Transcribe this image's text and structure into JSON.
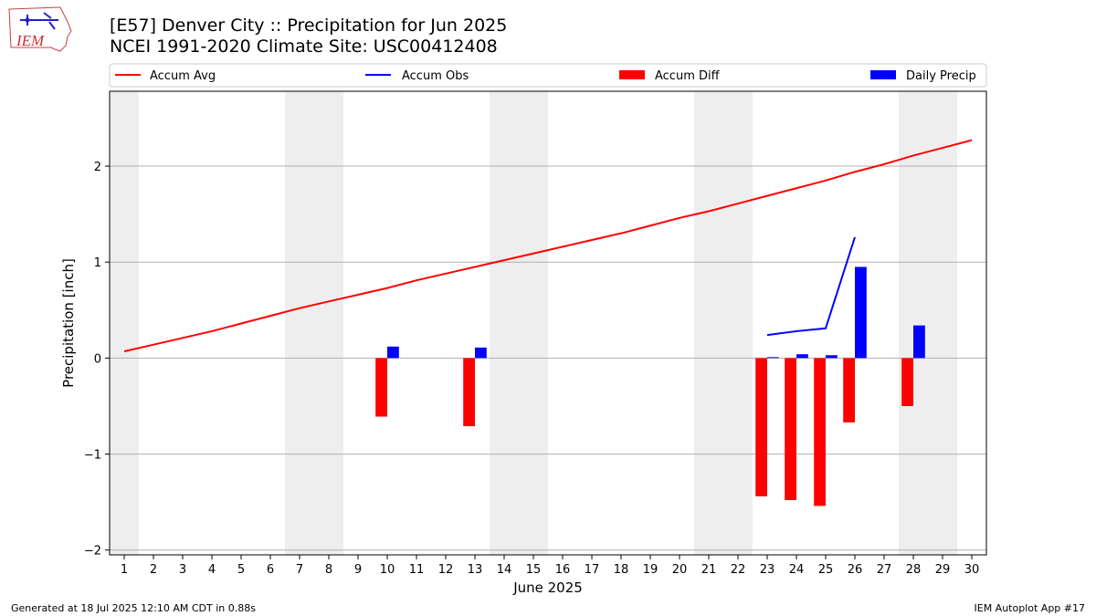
{
  "header": {
    "title_line1": "[E57] Denver City :: Precipitation for Jun 2025",
    "title_line2": "NCEI 1991-2020 Climate Site: USC00412408",
    "logo_text": "IEM"
  },
  "footer": {
    "generated": "Generated at 18 Jul 2025 12:10 AM CDT in 0.88s",
    "app": "IEM Autoplot App #17"
  },
  "colors": {
    "accum_avg": "#ff0000",
    "accum_obs": "#0000ff",
    "accum_diff": "#ff0000",
    "daily_precip": "#0000ff",
    "weekend_band": "#eeeeee",
    "grid": "#b0b0b0"
  },
  "chart_data": {
    "type": "bar",
    "xlabel": "June 2025",
    "ylabel": "Precipitation [inch]",
    "xlim": [
      0.5,
      30.5
    ],
    "ylim": [
      -2.05,
      2.78
    ],
    "yticks": [
      -2,
      -1,
      0,
      1,
      2
    ],
    "ytick_labels": [
      "−2",
      "−1",
      "0",
      "1",
      "2"
    ],
    "xticks": [
      1,
      2,
      3,
      4,
      5,
      6,
      7,
      8,
      9,
      10,
      11,
      12,
      13,
      14,
      15,
      16,
      17,
      18,
      19,
      20,
      21,
      22,
      23,
      24,
      25,
      26,
      27,
      28,
      29,
      30
    ],
    "grid": "y",
    "legend_position": "top",
    "legend": [
      "Accum Avg",
      "Accum Obs",
      "Accum Diff",
      "Daily Precip"
    ],
    "weekend_days": [
      1,
      7,
      8,
      14,
      15,
      21,
      22,
      28,
      29
    ],
    "series": [
      {
        "name": "Accum Avg",
        "kind": "line",
        "x": [
          1,
          2,
          3,
          4,
          5,
          6,
          7,
          8,
          9,
          10,
          11,
          12,
          13,
          14,
          15,
          16,
          17,
          18,
          19,
          20,
          21,
          22,
          23,
          24,
          25,
          26,
          27,
          28,
          29,
          30
        ],
        "values": [
          0.07,
          0.14,
          0.21,
          0.28,
          0.36,
          0.44,
          0.52,
          0.59,
          0.66,
          0.73,
          0.81,
          0.88,
          0.95,
          1.02,
          1.09,
          1.16,
          1.23,
          1.3,
          1.38,
          1.46,
          1.53,
          1.61,
          1.69,
          1.77,
          1.85,
          1.94,
          2.02,
          2.11,
          2.19,
          2.27
        ]
      },
      {
        "name": "Accum Obs",
        "kind": "line",
        "x": [
          23,
          24,
          25,
          26
        ],
        "values": [
          0.24,
          0.28,
          0.31,
          1.26
        ]
      },
      {
        "name": "Accum Diff",
        "kind": "bar",
        "x": [
          10,
          13,
          23,
          24,
          25,
          26,
          28
        ],
        "values": [
          -0.61,
          -0.71,
          -1.44,
          -1.48,
          -1.54,
          -0.67,
          -0.5
        ]
      },
      {
        "name": "Daily Precip",
        "kind": "bar",
        "x": [
          10,
          13,
          23,
          24,
          25,
          26,
          28
        ],
        "values": [
          0.12,
          0.11,
          0.01,
          0.04,
          0.03,
          0.95,
          0.34
        ]
      }
    ]
  }
}
